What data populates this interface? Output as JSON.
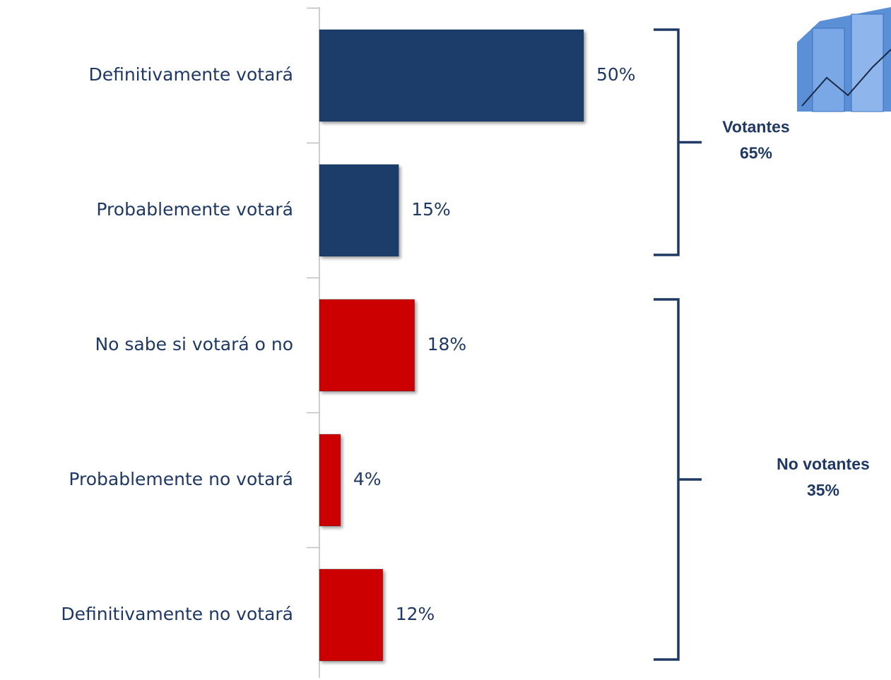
{
  "chart_data": {
    "type": "bar",
    "orientation": "horizontal",
    "categories": [
      "Definitivamente votará",
      "Probablemente votará",
      "No sabe si votará o no",
      "Probablemente no votará",
      "Definitivamente no votará"
    ],
    "values": [
      50,
      15,
      18,
      4,
      12
    ],
    "value_labels": [
      "50%",
      "15%",
      "18%",
      "4%",
      "12%"
    ],
    "colors": [
      "#1f3d6a",
      "#1f3d6a",
      "#cc0000",
      "#cc0000",
      "#cc0000"
    ],
    "groups": [
      {
        "name": "Votantes",
        "value": 65,
        "value_label": "65%",
        "size": 2
      },
      {
        "name": "No votantes",
        "value": 35,
        "value_label": "35%",
        "size": 3
      }
    ]
  }
}
